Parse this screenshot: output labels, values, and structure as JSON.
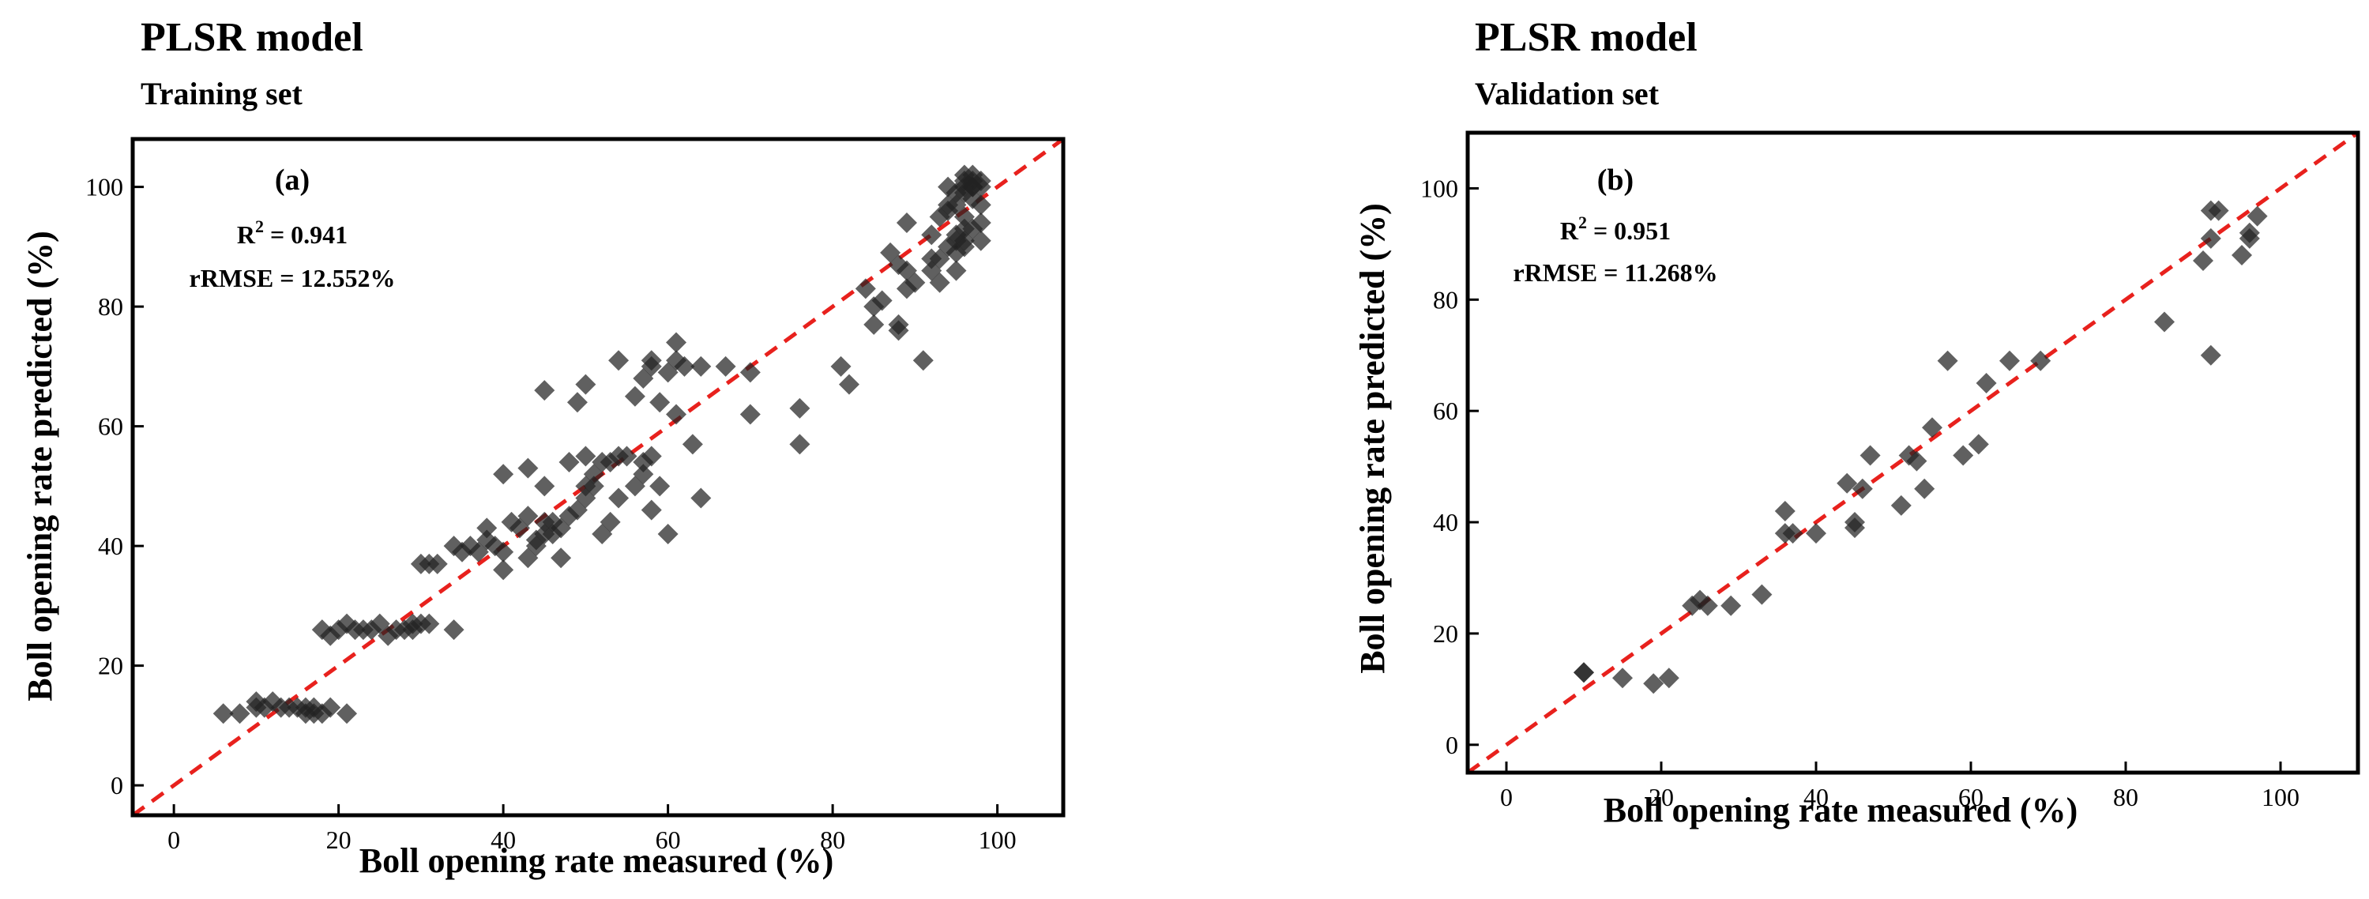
{
  "figure": {
    "panels": [
      {
        "model_title": "PLSR model",
        "set_title": "Training set"
      },
      {
        "model_title": "PLSR model",
        "set_title": "Validation set"
      }
    ]
  },
  "chart_data": [
    {
      "type": "scatter",
      "panel_label": "(a)",
      "title": "PLSR model",
      "subtitle": "Training set",
      "xlabel": "Boll opening rate measured (%)",
      "ylabel": "Boll opening rate predicted (%)",
      "xlim": [
        -5,
        108
      ],
      "ylim": [
        -5,
        108
      ],
      "xticks": [
        0,
        20,
        40,
        60,
        80,
        100
      ],
      "yticks": [
        0,
        20,
        40,
        60,
        80,
        100
      ],
      "annotations": {
        "r2_prefix": "R",
        "r2_sup": "2",
        "r2_value": " = 0.941",
        "rrmse": "rRMSE = 12.552%"
      },
      "reference_line": {
        "style": "dashed",
        "color": "#e8211d",
        "slope": 1,
        "intercept": 0
      },
      "marker": {
        "shape": "diamond",
        "color": "#222222",
        "opacity": 0.72
      },
      "points": [
        [
          6,
          12
        ],
        [
          8,
          12
        ],
        [
          10,
          13
        ],
        [
          10,
          14
        ],
        [
          11,
          13
        ],
        [
          12,
          14
        ],
        [
          13,
          13
        ],
        [
          14,
          13
        ],
        [
          15,
          13
        ],
        [
          16,
          12
        ],
        [
          16,
          13
        ],
        [
          17,
          12
        ],
        [
          17,
          13
        ],
        [
          18,
          12
        ],
        [
          19,
          13
        ],
        [
          21,
          12
        ],
        [
          18,
          26
        ],
        [
          19,
          25
        ],
        [
          20,
          26
        ],
        [
          21,
          27
        ],
        [
          22,
          26
        ],
        [
          23,
          26
        ],
        [
          24,
          26
        ],
        [
          25,
          27
        ],
        [
          26,
          25
        ],
        [
          27,
          26
        ],
        [
          28,
          26
        ],
        [
          29,
          26
        ],
        [
          29,
          27
        ],
        [
          30,
          27
        ],
        [
          31,
          27
        ],
        [
          34,
          26
        ],
        [
          30,
          37
        ],
        [
          31,
          37
        ],
        [
          32,
          37
        ],
        [
          34,
          40
        ],
        [
          35,
          39
        ],
        [
          36,
          40
        ],
        [
          37,
          39
        ],
        [
          38,
          41
        ],
        [
          38,
          43
        ],
        [
          39,
          40
        ],
        [
          40,
          39
        ],
        [
          40,
          36
        ],
        [
          41,
          44
        ],
        [
          42,
          43
        ],
        [
          43,
          45
        ],
        [
          43,
          38
        ],
        [
          40,
          52
        ],
        [
          43,
          53
        ],
        [
          44,
          40
        ],
        [
          44,
          41
        ],
        [
          45,
          42
        ],
        [
          45,
          44
        ],
        [
          45,
          50
        ],
        [
          46,
          42
        ],
        [
          46,
          44
        ],
        [
          47,
          43
        ],
        [
          47,
          38
        ],
        [
          48,
          45
        ],
        [
          48,
          54
        ],
        [
          49,
          46
        ],
        [
          50,
          48
        ],
        [
          50,
          50
        ],
        [
          50,
          55
        ],
        [
          51,
          50
        ],
        [
          51,
          52
        ],
        [
          52,
          42
        ],
        [
          52,
          54
        ],
        [
          53,
          54
        ],
        [
          53,
          44
        ],
        [
          54,
          55
        ],
        [
          54,
          48
        ],
        [
          55,
          55
        ],
        [
          56,
          50
        ],
        [
          57,
          54
        ],
        [
          57,
          52
        ],
        [
          58,
          55
        ],
        [
          58,
          46
        ],
        [
          59,
          50
        ],
        [
          60,
          42
        ],
        [
          59,
          64
        ],
        [
          60,
          69
        ],
        [
          61,
          71
        ],
        [
          61,
          74
        ],
        [
          62,
          70
        ],
        [
          63,
          57
        ],
        [
          64,
          70
        ],
        [
          64,
          48
        ],
        [
          67,
          70
        ],
        [
          70,
          69
        ],
        [
          70,
          62
        ],
        [
          50,
          67
        ],
        [
          49,
          64
        ],
        [
          45,
          66
        ],
        [
          54,
          71
        ],
        [
          56,
          65
        ],
        [
          57,
          68
        ],
        [
          58,
          71
        ],
        [
          58,
          70
        ],
        [
          61,
          62
        ],
        [
          76,
          63
        ],
        [
          76,
          57
        ],
        [
          81,
          70
        ],
        [
          82,
          67
        ],
        [
          84,
          83
        ],
        [
          85,
          77
        ],
        [
          85,
          80
        ],
        [
          86,
          81
        ],
        [
          87,
          89
        ],
        [
          88,
          87
        ],
        [
          88,
          76
        ],
        [
          88,
          77
        ],
        [
          89,
          86
        ],
        [
          89,
          83
        ],
        [
          89,
          94
        ],
        [
          90,
          84
        ],
        [
          91,
          71
        ],
        [
          92,
          86
        ],
        [
          92,
          88
        ],
        [
          93,
          84
        ],
        [
          93,
          88
        ],
        [
          94,
          90
        ],
        [
          94,
          96
        ],
        [
          94,
          100
        ],
        [
          95,
          89
        ],
        [
          95,
          91
        ],
        [
          95,
          92
        ],
        [
          95,
          86
        ],
        [
          96,
          90
        ],
        [
          96,
          91
        ],
        [
          96,
          93
        ],
        [
          96,
          95
        ],
        [
          96,
          99
        ],
        [
          96,
          101
        ],
        [
          96,
          102
        ],
        [
          97,
          100
        ],
        [
          97,
          101
        ],
        [
          97,
          98
        ],
        [
          97,
          93
        ],
        [
          98,
          100
        ],
        [
          98,
          97
        ],
        [
          98,
          91
        ],
        [
          98,
          94
        ],
        [
          98,
          101
        ],
        [
          97,
          102
        ],
        [
          96,
          100
        ],
        [
          97,
          100
        ],
        [
          95,
          99
        ],
        [
          95,
          97
        ],
        [
          94,
          97
        ],
        [
          93,
          95
        ],
        [
          92,
          92
        ]
      ]
    },
    {
      "type": "scatter",
      "panel_label": "(b)",
      "title": "PLSR model",
      "subtitle": "Validation set",
      "xlabel": "Boll opening rate measured (%)",
      "ylabel": "Boll opening rate predicted (%)",
      "xlim": [
        -5,
        110
      ],
      "ylim": [
        -5,
        110
      ],
      "xticks": [
        0,
        20,
        40,
        60,
        80,
        100
      ],
      "yticks": [
        0,
        20,
        40,
        60,
        80,
        100
      ],
      "annotations": {
        "r2_prefix": "R",
        "r2_sup": "2",
        "r2_value": " = 0.951",
        "rrmse": "rRMSE = 11.268%"
      },
      "reference_line": {
        "style": "dashed",
        "color": "#e8211d",
        "slope": 1,
        "intercept": 0
      },
      "marker": {
        "shape": "diamond",
        "color": "#222222",
        "opacity": 0.72
      },
      "points": [
        [
          10,
          13
        ],
        [
          10,
          13
        ],
        [
          15,
          12
        ],
        [
          19,
          11
        ],
        [
          21,
          12
        ],
        [
          24,
          25
        ],
        [
          25,
          26
        ],
        [
          26,
          25
        ],
        [
          29,
          25
        ],
        [
          33,
          27
        ],
        [
          36,
          38
        ],
        [
          36,
          42
        ],
        [
          37,
          38
        ],
        [
          40,
          38
        ],
        [
          44,
          47
        ],
        [
          45,
          39
        ],
        [
          45,
          40
        ],
        [
          46,
          46
        ],
        [
          47,
          52
        ],
        [
          51,
          43
        ],
        [
          52,
          52
        ],
        [
          53,
          51
        ],
        [
          54,
          46
        ],
        [
          55,
          57
        ],
        [
          57,
          69
        ],
        [
          59,
          52
        ],
        [
          61,
          54
        ],
        [
          62,
          65
        ],
        [
          65,
          69
        ],
        [
          69,
          69
        ],
        [
          85,
          76
        ],
        [
          90,
          87
        ],
        [
          91,
          96
        ],
        [
          91,
          70
        ],
        [
          91,
          91
        ],
        [
          92,
          96
        ],
        [
          95,
          88
        ],
        [
          96,
          91
        ],
        [
          96,
          92
        ],
        [
          97,
          95
        ]
      ]
    }
  ]
}
